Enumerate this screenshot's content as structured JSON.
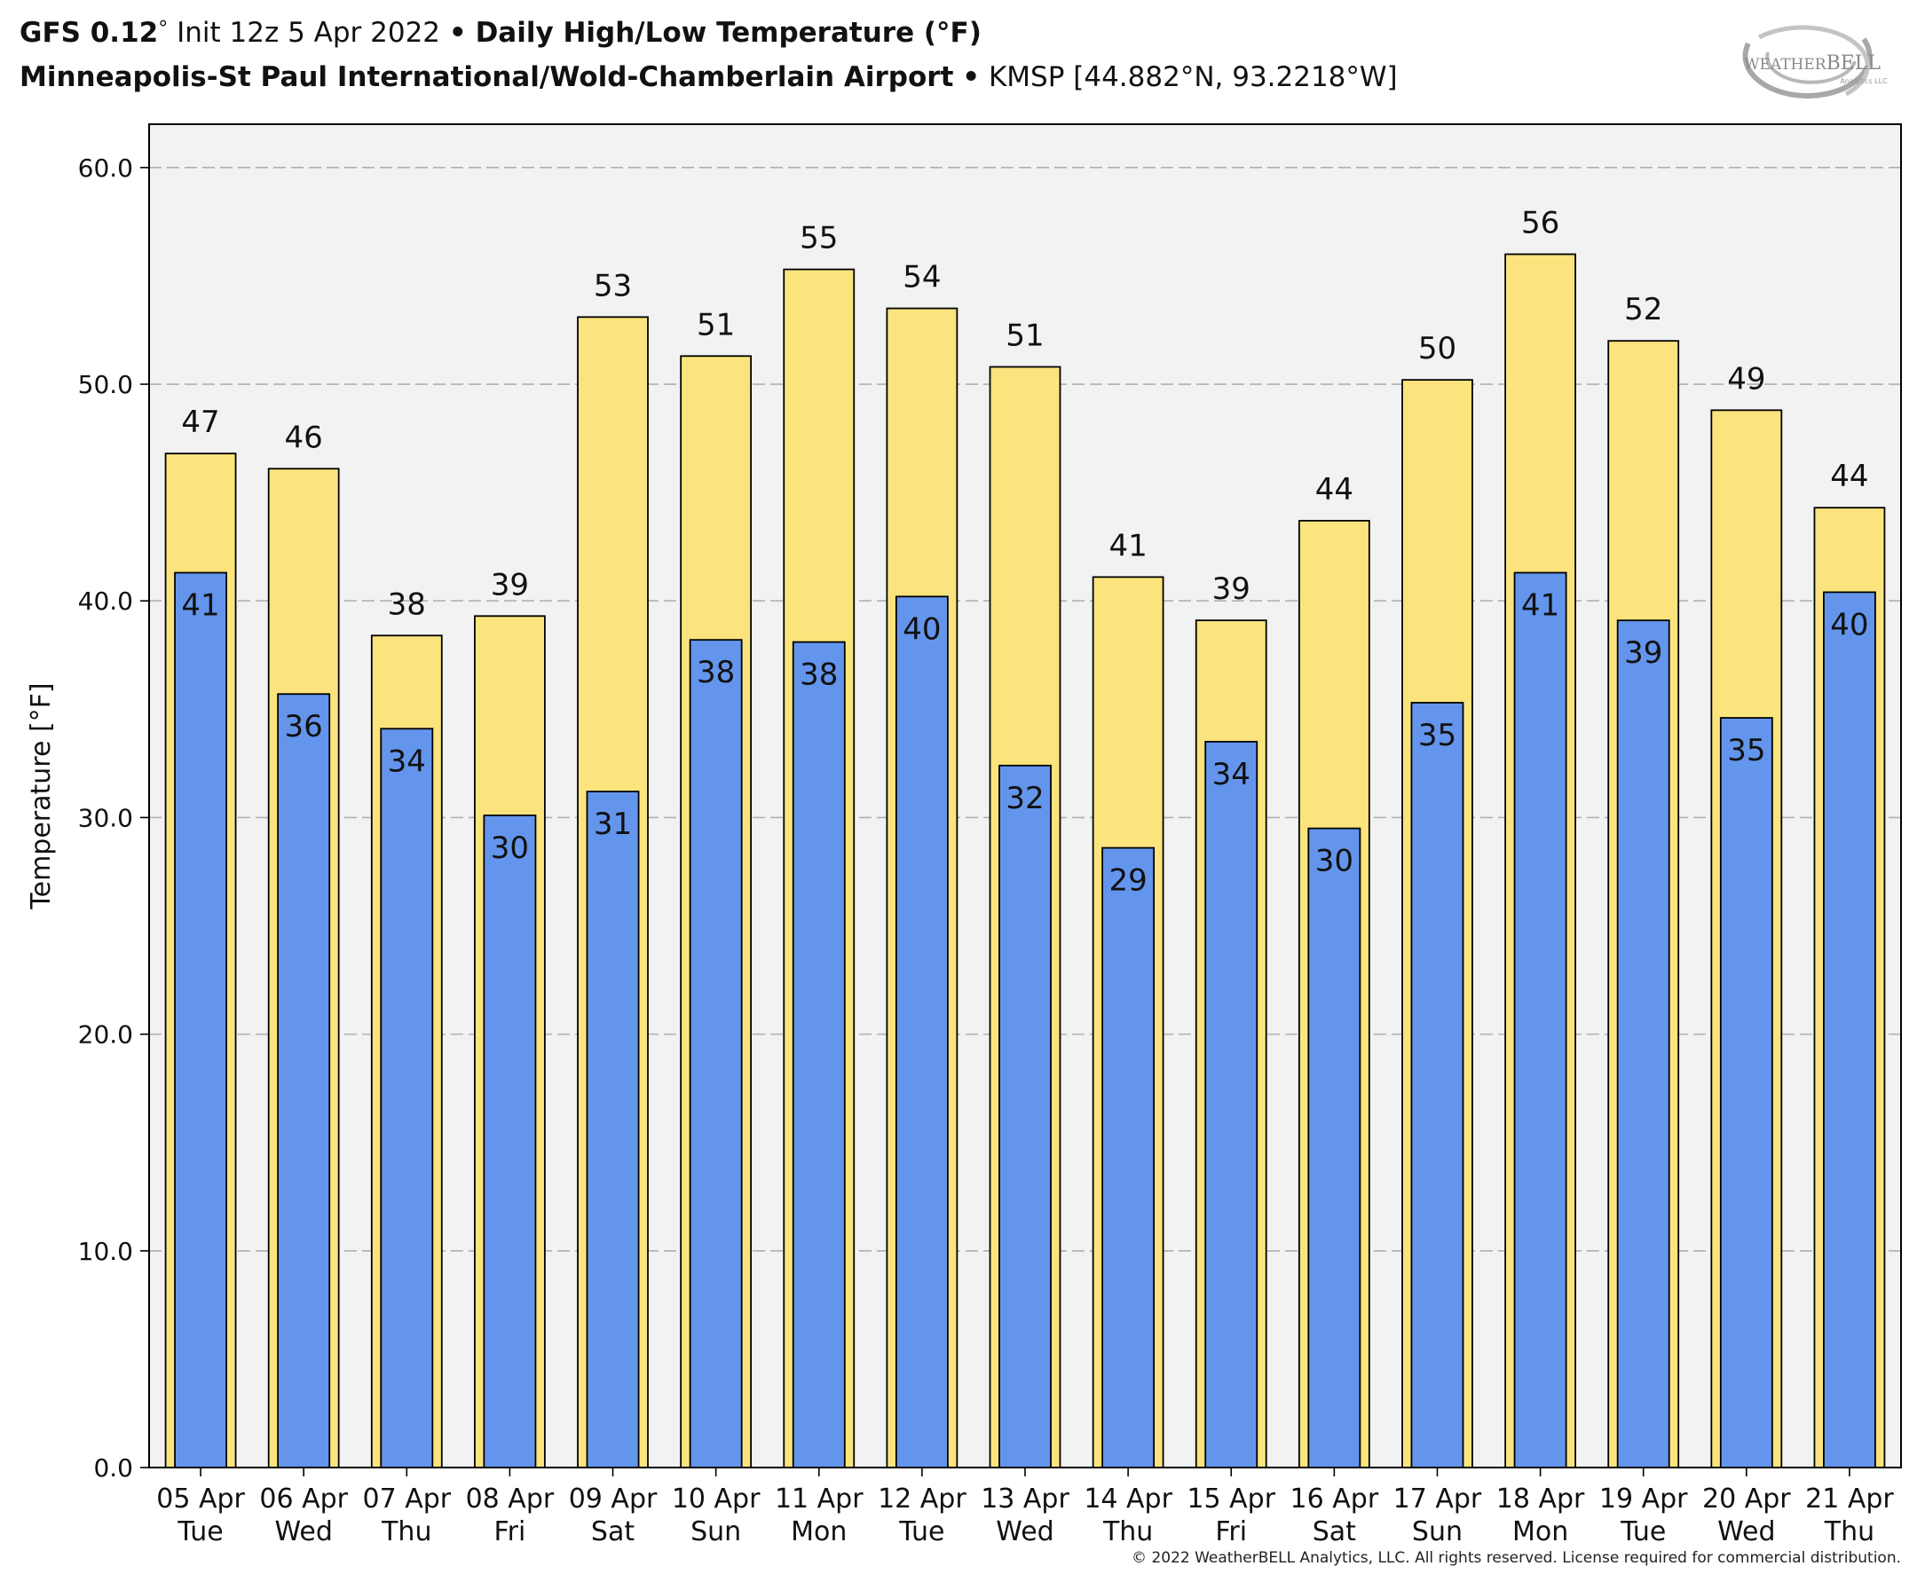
{
  "header": {
    "model": "GFS 0.12",
    "model_deg": "°",
    "init": "Init 12z 5 Apr 2022",
    "bullet": "•",
    "product": "Daily High/Low Temperature (°F)",
    "station_name": "Minneapolis-St Paul International/Wold-Chamberlain Airport",
    "station_info": "KMSP [44.882°N, 93.2218°W]"
  },
  "logo": {
    "text_left": "WEATHER",
    "text_right": "BELL",
    "subtext": "Analytics LLC"
  },
  "footer": "© 2022 WeatherBELL Analytics, LLC. All rights reserved. License required for commercial distribution.",
  "colors": {
    "high": "#fbe47e",
    "low": "#6495ed",
    "plot_bg": "#f2f2f2",
    "grid": "#b0b0b0",
    "border": "#000000"
  },
  "chart_data": {
    "type": "bar",
    "ylabel": "Temperature [°F]",
    "ylim": [
      0,
      62
    ],
    "yticks": [
      "0.0",
      "10.0",
      "20.0",
      "30.0",
      "40.0",
      "50.0",
      "60.0"
    ],
    "grid": true,
    "categories": [
      [
        "05 Apr",
        "Tue"
      ],
      [
        "06 Apr",
        "Wed"
      ],
      [
        "07 Apr",
        "Thu"
      ],
      [
        "08 Apr",
        "Fri"
      ],
      [
        "09 Apr",
        "Sat"
      ],
      [
        "10 Apr",
        "Sun"
      ],
      [
        "11 Apr",
        "Mon"
      ],
      [
        "12 Apr",
        "Tue"
      ],
      [
        "13 Apr",
        "Wed"
      ],
      [
        "14 Apr",
        "Thu"
      ],
      [
        "15 Apr",
        "Fri"
      ],
      [
        "16 Apr",
        "Sat"
      ],
      [
        "17 Apr",
        "Sun"
      ],
      [
        "18 Apr",
        "Mon"
      ],
      [
        "19 Apr",
        "Tue"
      ],
      [
        "20 Apr",
        "Wed"
      ],
      [
        "21 Apr",
        "Thu"
      ]
    ],
    "series": [
      {
        "key": "high",
        "values": [
          46.8,
          46.1,
          38.4,
          39.3,
          53.1,
          51.3,
          55.3,
          53.5,
          50.8,
          41.1,
          39.1,
          43.7,
          50.2,
          56.0,
          52.0,
          48.8,
          44.3
        ],
        "labels": [
          "47",
          "46",
          "38",
          "39",
          "53",
          "51",
          "55",
          "54",
          "51",
          "41",
          "39",
          "44",
          "50",
          "56",
          "52",
          "49",
          "44"
        ]
      },
      {
        "key": "low",
        "values": [
          41.3,
          35.7,
          34.1,
          30.1,
          31.2,
          38.2,
          38.1,
          40.2,
          32.4,
          28.6,
          33.5,
          29.5,
          35.3,
          41.3,
          39.1,
          34.6,
          40.4
        ],
        "labels": [
          "41",
          "36",
          "34",
          "30",
          "31",
          "38",
          "38",
          "40",
          "32",
          "29",
          "34",
          "30",
          "35",
          "41",
          "39",
          "35",
          "40"
        ]
      }
    ]
  }
}
